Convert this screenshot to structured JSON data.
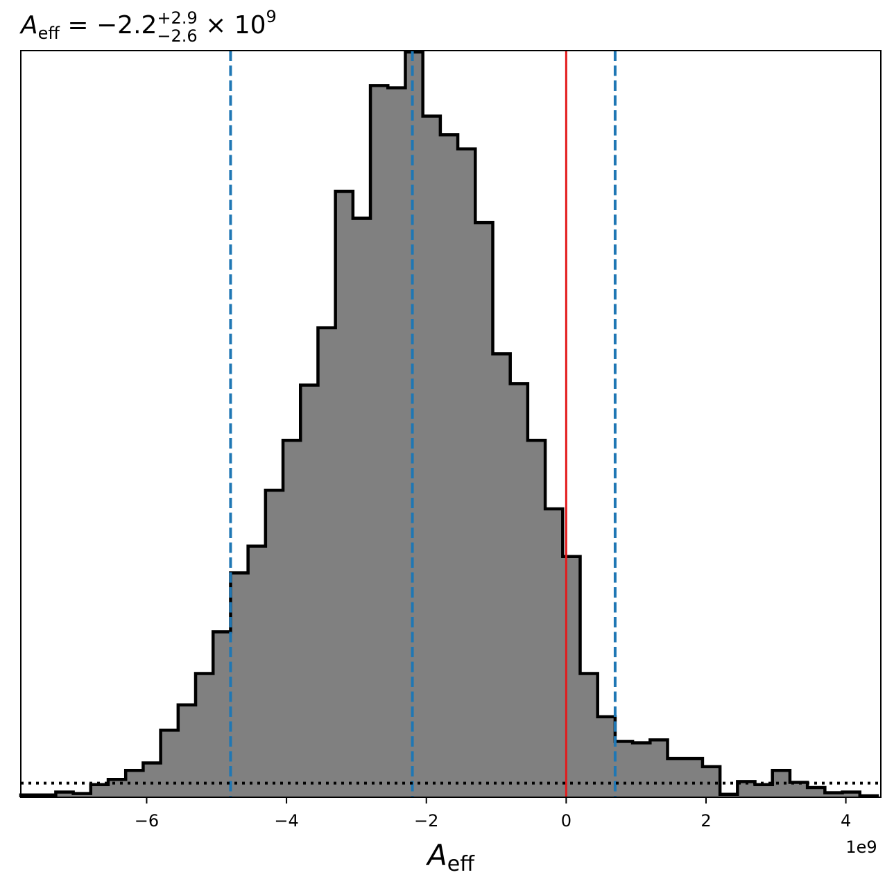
{
  "chart_data": {
    "type": "histogram",
    "title": {
      "symbol": "A",
      "symbol_sub": "eff",
      "relation": " = ",
      "median": "−2.2",
      "plus_err": "+2.9",
      "minus_err": "−2.6",
      "times": " × 10",
      "exponent": "9"
    },
    "xlabel": {
      "symbol": "A",
      "subscript": "eff"
    },
    "offset_label": "1e9",
    "xlim": [
      -7.8,
      4.5
    ],
    "ylim": [
      0,
      1.0
    ],
    "x_ticks": [
      -6,
      -4,
      -2,
      0,
      2,
      4
    ],
    "x_tick_labels": [
      "−6",
      "−4",
      "−2",
      "0",
      "2",
      "4"
    ],
    "y_ticks_visible": false,
    "bin_edges": [
      -7.8,
      -7.55,
      -7.3,
      -7.05,
      -6.8,
      -6.55,
      -6.3,
      -6.05,
      -5.8,
      -5.55,
      -5.3,
      -5.05,
      -4.8,
      -4.55,
      -4.3,
      -4.05,
      -3.8,
      -3.55,
      -3.3,
      -3.05,
      -2.8,
      -2.55,
      -2.3,
      -2.05,
      -1.8,
      -1.55,
      -1.3,
      -1.05,
      -0.8,
      -0.55,
      -0.3,
      -0.05,
      0.2,
      0.45,
      0.7,
      0.95,
      1.2,
      1.45,
      1.7,
      1.95,
      2.2,
      2.45,
      2.7,
      2.95,
      3.2,
      3.45,
      3.7,
      3.95,
      4.2,
      4.45
    ],
    "counts": [
      0.003,
      0.003,
      0.007,
      0.005,
      0.017,
      0.024,
      0.036,
      0.046,
      0.09,
      0.124,
      0.166,
      0.222,
      0.301,
      0.337,
      0.412,
      0.479,
      0.553,
      0.63,
      0.813,
      0.777,
      0.955,
      0.952,
      1.0,
      0.914,
      0.889,
      0.87,
      0.771,
      0.595,
      0.555,
      0.479,
      0.387,
      0.323,
      0.166,
      0.108,
      0.075,
      0.073,
      0.077,
      0.052,
      0.052,
      0.041,
      0.004,
      0.021,
      0.017,
      0.036,
      0.02,
      0.013,
      0.006,
      0.007,
      0.002
    ],
    "fill_color": "#808080",
    "edge_color": "#000000",
    "vertical_lines": [
      {
        "x": -4.8,
        "color": "#1f77b4",
        "style": "dashed",
        "role": "lower-quantile"
      },
      {
        "x": -2.2,
        "color": "#1f77b4",
        "style": "dashed",
        "role": "median"
      },
      {
        "x": 0.7,
        "color": "#1f77b4",
        "style": "dashed",
        "role": "upper-quantile"
      },
      {
        "x": 0.0,
        "color": "#e31a1c",
        "style": "solid",
        "role": "reference"
      }
    ],
    "horizontal_lines": [
      {
        "y": 0.019,
        "color": "#000000",
        "style": "dotted"
      }
    ],
    "grid": false,
    "legend": "none"
  }
}
